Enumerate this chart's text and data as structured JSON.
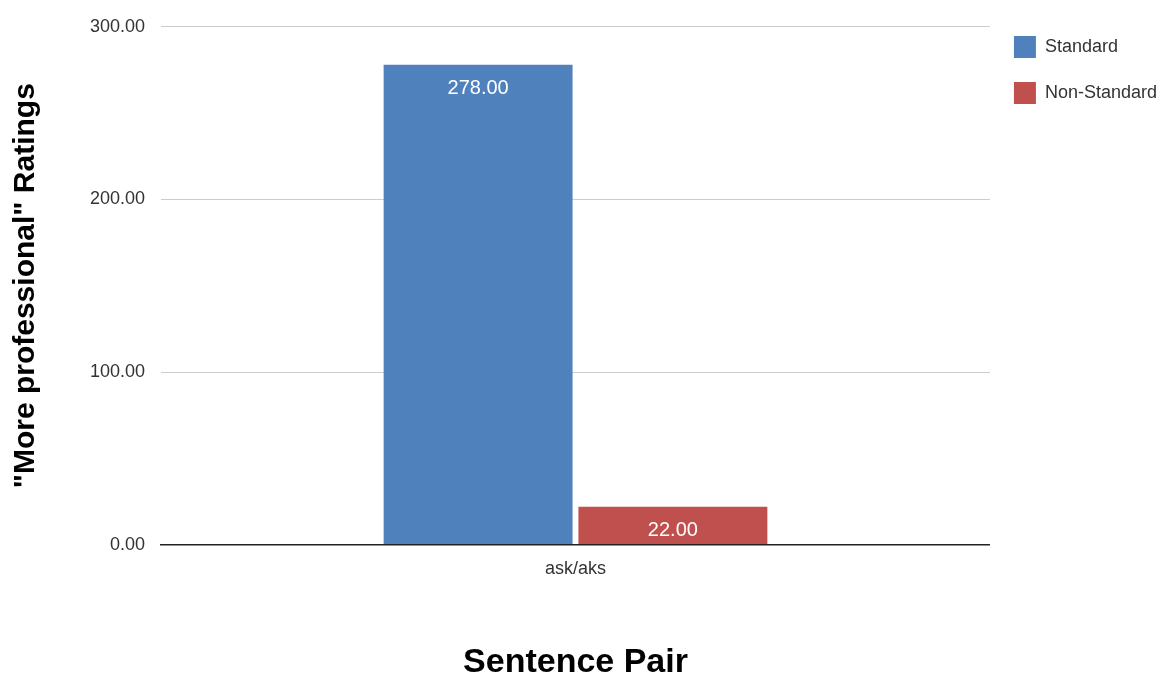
{
  "chart_data": {
    "type": "bar",
    "xlabel": "Sentence Pair",
    "ylabel": "\"More professional\" Ratings",
    "categories": [
      "ask/aks"
    ],
    "series": [
      {
        "name": "Standard",
        "color": "#4f81bd",
        "values": [
          278
        ],
        "value_labels": [
          "278.00"
        ]
      },
      {
        "name": "Non-Standard",
        "color": "#c0504d",
        "values": [
          22
        ],
        "value_labels": [
          "22.00"
        ]
      }
    ],
    "ylim": [
      0,
      300
    ],
    "yticks": [
      {
        "value": 0,
        "label": "0.00"
      },
      {
        "value": 100,
        "label": "100.00"
      },
      {
        "value": 200,
        "label": "200.00"
      },
      {
        "value": 300,
        "label": "300.00"
      }
    ],
    "grid": "y",
    "legend": "top right"
  }
}
